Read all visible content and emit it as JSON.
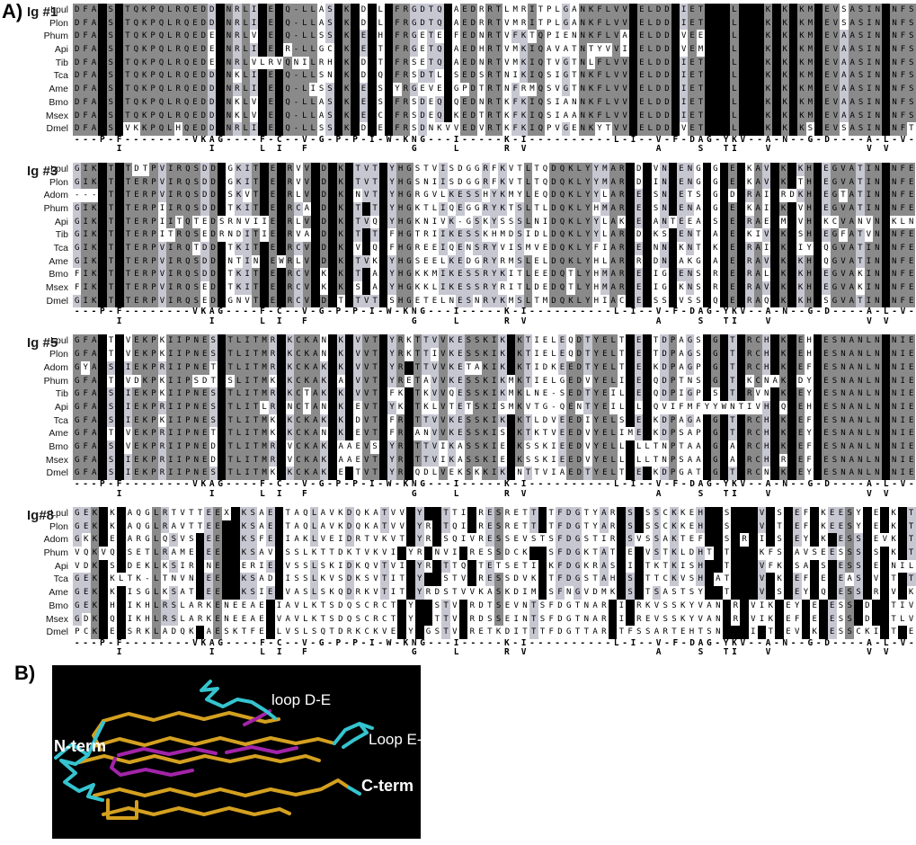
{
  "figure": {
    "panel_a_label": "A)",
    "panel_b_label": "B)"
  },
  "alignment": {
    "colors": {
      "identical_box": "#000000",
      "conserved_bg": "#8a8a8a",
      "similar_bg": "#c7c7d2",
      "mismatch_bg": "#ffffff",
      "text": "#000000",
      "black_box_char": "#"
    },
    "consensus": {
      "line1": "---P-F--------VKAG----F-C--V-G-P-P-I-W-KNG---I-----K-I----------L-I--V-F-DAG-YKV--A-N--G-D----A-L-V-",
      "line2": "     I          I     L I  F            G    L     R V               A    S  TI   V           V V"
    },
    "blocks": [
      {
        "title": "Ig #1",
        "rows": [
          {
            "name": "Lpul",
            "seq": "DFA#S#TQKPQLRQEDD#NRLI#E#Q-LLAS#K#D#L#FRGDTQ#AEDRRTLMRITPLGANKFLVV#ELDD#IET###L###K#K#KM#EVSASIN#NFS"
          },
          {
            "name": "Plon",
            "seq": "DFA#S#TQKPQLRQEDD#NRLI#E#Q-LLAS#K#D#L#FRGDTQ#AEDRRTVMRITPLGANKFLVV#ELDD#IET###L###K#K#KM#EVSASIN#NFS"
          },
          {
            "name": "Phum",
            "seq": "DFA#S#TQKPQLRQEDE#NRLV#E#Q-LLSS#K#E#H#FRGETE#FEDNRTVFKTQPIENNKFLVA#ELDD#VEE###L###K#K#KM#EVAASIN#NFS"
          },
          {
            "name": "Api",
            "seq": "DFA#S#TQKPQLRQEDE#NRLI#E#R-LLGC#K#E#T#FRGETQ#AEDHRTVMKIQAVATNTYVVI#ELDD#VEM###L###K#K#KM#EVAASIN#NFS"
          },
          {
            "name": "Tib",
            "seq": "DFA#S#TQKPQLRQEDE#NRLVLRVQNILRH#K#D#T#FRSETQ#AEDNRTVMKIQTVGTNLFLVV#ELDD#IET###L###K#K#KM#EVAASIN#NFS"
          },
          {
            "name": "Tca",
            "seq": "DFA#S#TQKPQLRQEDD#NKLI#E#Q-LLSN#K#D#Q#FRSDTL#SEDSRTNIKIQSIGTNKFLVV#ELDD#IET###L###K#K#KM#EVAASIN#NFS"
          },
          {
            "name": "Ame",
            "seq": "DFA#S#TQKPQLRQEDD#NRLI#E#Q-LISS#K#E#S#YRGEVE#GPDTRTNFRMQSVGTNKFLVV#ELDD#IET###L###K#K#KM#EVAASIN#NFS"
          },
          {
            "name": "Bmo",
            "seq": "DFA#S#TQKPQLRQEDD#NKLV#E#Q-LLAS#K#E#S#FRSDEQ#QEDNRTKFKIQSIANNKFLVV#ELDD#IET###L###K#K#KM#EVAASIN#NFS"
          },
          {
            "name": "Msex",
            "seq": "DFA#S#TQKPQLRQEDD#NKLV#E#Q-LLAS#K#E#C#FRSDEQ#KEDTRTKFKIQSIAANKFLVV#ELDD#IET###L###K#K#KM#EVAASIN#NFS"
          },
          {
            "name": "Dmel",
            "seq": "DFA#S#VKKPQLHQEDD#NRLI#E#Q-LLSS#K#D#E#FRSDNKVVEDVRTKFKIQPVGENKYTVV#ELDD#VET###L###K#K#KS#EVSASIN#NFT"
          }
        ]
      },
      {
        "title": "Ig #3",
        "rows": [
          {
            "name": "Lpul",
            "seq": "GIK#T#TDTPVIRQSDD#GKIT#E#RVV#D#K#TVT#YHGSTVISDGGRFKVTLTQDQKLYYMAR#D#VN#ENG#G#E#KAV#K#KH#EGVATIN#NFE"
          },
          {
            "name": "Plon",
            "seq": "GIK#T#TERPVIRQSDD#GKIT#E#RVV#D#K#TVT#YHGSNIISDGGRFKVTLTQDQKLYYMAR#D#IN#ENG#G#E#KAV#K#TH#EGVATIN#NFE"
          },
          {
            "name": "Adom",
            "seq": "---#T#TERPVIRQSDD#SKVT#E#RLV#D#K#NVT#YHGRGVLKESSHYKMYLEQDQKLYYLAR#E#SN#ETS#G#D#RAI#RDKH#EGTATIN#NFE"
          },
          {
            "name": "Phum",
            "seq": "GIK#T#TERPIIRQSDD#TKIT#E#RCA#D#K#T#T#YHGKTLIQEGGRYKTSLTLDQKLYHMAR#E#SN#ENA#G#E#KAI#K#VH#EGVATIN#NFE"
          },
          {
            "name": "Api",
            "seq": "GIK#T#TERPIITQTEDSRNVIIE#RLV#D#K#TVQ#YHGKNIVK-GSKYSSSLNIDQKLYYLAK#E#ANTEEA#S#E#RAE#M#VH#KCVANVN#KLN"
          },
          {
            "name": "Tib",
            "seq": "GIK#T#TERPITRQSEDRNDITIE#RVA#D#K#T#T#FHGTRIIKESSKHMDSIDLDQKLYYLAR#D#KS#ENT#A#E#KIV#K#SH#EGFATVN#NFE"
          },
          {
            "name": "Tca",
            "seq": "GIK#T#TERPVIRQTDD#TKIT#E#RCV#D#K#V#Q#FHGREEIQENSRYVISMVEDQKLYFIAR#E#NN#KNT#K#E#RAI#K#IY#QGVATIN#NFE"
          },
          {
            "name": "Ame",
            "seq": "GIK#T#TERPVIRQSDD#NTIN#EWRLV#D#K#TVK#YHGSEELKEDGRYRMSLELDQKLYHLAR#R#DN#AKG#A#E#RAV#K#KH#QGVATIN#NFE"
          },
          {
            "name": "Bmo",
            "seq": "FIK#T#TERPVIRQSDD#TKIT#E#RCV#K#K#T#A#YHGKKMIKESSRYKITLEEDQTLYHMAR#E#IG#ENS#R#E#RAL#K#KH#EGVAKIN#NFE"
          },
          {
            "name": "Msex",
            "seq": "FIK#T#TERPVIRQSED#TKIT#E#RCV#K#K#S#A#YHGKKLIKESSRYRITLDEDQTLYHMAR#E#IG#KNS#R#E#RAV#K#KH#EGVAKIN#NFE"
          },
          {
            "name": "Dmel",
            "seq": "GIK#T#TERPVIRQSED#GNVT#E#RCV#D#T#TVT#SHGETELNESNRYKMSLTMDQKLYHIAC#E#SS#VSS#Q#E#RAQ#K#KH#SGVATIN#NFE"
          }
        ]
      },
      {
        "title": "Ig #5",
        "rows": [
          {
            "name": "Lpul",
            "seq": "GFA#T#VEKPKIIPNES#TLITMR#KCKAN#K#VVT#YRKTTVVKESSKIK#KTIELEQDTYELT#E#TDPAGS#G#T#RCH#K#EH#ESNANLN#NIE"
          },
          {
            "name": "Plon",
            "seq": "GFA#T#VEKPKIIPNES#TLITMR#KCKAN#K#VVT#YRKTTIVKESSKIK#KTIELEQDTYELT#E#TDPAGS#G#T#RCH#K#EH#ESNANLN#NIE"
          },
          {
            "name": "Adom",
            "seq": "GYA#S#IEKPRIIPNET#TLITMR#KCKAK#K#VVT#YR#TTVVKETAKIK#KTIDKEEDTYELT#E#KDPAGP#G#T#RCH#K#EF#ESNANLN#NIE"
          },
          {
            "name": "Phum",
            "seq": "GFA#T#VDKPKIIPSDT#SLITMK#KCKAK#A#VVT#YRETAVVKESSKIKMKTIELGEDVYELI#E#QDPTNS#G#T#KCNAK#DY#ESNANLN#NIE"
          },
          {
            "name": "Tib",
            "seq": "GFA#S#IEKPKIIPNES#TLITMR#KCTAK#K#VVT#FK#TKVVQESSKIKMKLNE-SEDTYEIL#E#QDPIGP#S#T#RVN#K#EY#ESNANLN#NIE"
          },
          {
            "name": "Api",
            "seq": "GFA#S#IEKPRIIPNES#TLITLR#NCTAN#K#EVT#YK#TKLVTETSKISMKVTG-QENTYEIL#L#QVIFMFYYWNTIVH#Q#EH#ESNANLN#NIE"
          },
          {
            "name": "Tca",
            "seq": "GFA#S#IEKPKIIPNES#TLITMK#KCKAK#K#DVT#FR#TTVVKESSKIK#KTLDVEEDIYELS#E#KDPAGA#G#T#RCH#K#EF#ESNANLN#NIE"
          },
          {
            "name": "Ame",
            "seq": "GFA#T#VEKPRIIPNET#TLITMK#KCKAN#K#EVT#FR#ANVVKESSKIS#KTKTVEEDVYELIME#KDPSAP#G#T#RCH#K#EY#ESNANLN#NIE"
          },
          {
            "name": "Bmo",
            "seq": "GFA#S#VEKPRIIPNED#TLITMR#VCKAK#AAEVS#YR#TTVIKASSKIE#KSSKIEEDVYELL#LLTNPTAA#G#A#RCH#K#EF#ESNANLN#NIE"
          },
          {
            "name": "Msex",
            "seq": "GFA#S#IEKPRIIPNED#TLITMR#VCKAK#AAEVT#YR#TTVIKASSKIE#KSSKIEEDVYELL#LLTNPSAA#G#A#RCH#R#EF#ESNANLN#NIE"
          },
          {
            "name": "Dmel",
            "seq": "GFA#S#IEKPRIIPNES#TLITMK#KCKAK#E#TVT#YR#QDLVEKSKKIK#NTTVIAEDTYELT#E#KDPGAT#G#T#RCN#K#EY#ESNANLN#NIE"
          }
        ]
      },
      {
        "title": "Ig#8",
        "rows": [
          {
            "name": "Lpul",
            "seq": "GEK#K#AQGLRTVTTEEX#KSAE#TAQLAVKDQKATVV#Y##TTI#RESRETT#TFDGTYAR#S#SSCKKEH##S###V#S#EF#KEESY#E#K#T"
          },
          {
            "name": "Plon",
            "seq": "GEK#K#AQGLRAVTTEE##KSAE#TAQLAVKDQKATVV#YR#TQI#RESRETT#TFDGTYAR#S#SSCKKEH##S###V#T#EF#KEESY#E#K#T"
          },
          {
            "name": "Adom",
            "seq": "GKK#E#ARGLQSVS#EE##KSFE#IAKLVEIDRTVKVT#YR#SQIVRESSEVSTSFDGSTIR#SVSSAKTEF##S#R#I#S#EY#K#ESS#EVK#T"
          },
          {
            "name": "Phum",
            "seq": "VQKVQ#SETLRAME#EE##KSAV#SSLKTTDKTVKVI#YR#NVI#RESSDCK##SFDGKTAT#E#VSTKLDHT#T###KFS#AVSEESSS#S#K#T"
          },
          {
            "name": "Api",
            "seq": "VDK#S#DEKLKSIR#NE##ERIE#VSSLSKIDKQVTVI#YR#TTQ#TETSETI#KFDGKRAS#I#TKTKISH##T###VFK#SA#S#ESS#E#NIL"
          },
          {
            "name": "Tca",
            "seq": "GEK#KLTK-LTNVN#EE##KSAD#ISSLKVSDKSVTIT#Y##STV#RESSDVK#TFDGSTAH#S#TTCKVSH#AT###V#K#EF#E#EAS#V#T#T"
          },
          {
            "name": "Ame",
            "seq": "GEK#K#ISGLKSAT#EE##KSIE#VASLSKQDRKVTIT#YRDSTVVKASKDIM#SFNGVDMK#S#TSASTSY##T###V#S#EY#Q#ESS#R#V#K"
          },
          {
            "name": "Bmo",
            "seq": "GEK#H#IKHLRSLARKENEEAE#IAVLKTSDQSCRCT#Y##STV#RDTSEVNTSFDGTNAR#I#RKVSSKYVAN#R#VIK#EY#E#ESS#D#TIV"
          },
          {
            "name": "Msex",
            "seq": "GDK#Q#IKHLRSLARKENEEAE#VAVLKTSDQSCRCT#Y##TTV#RDSSEINTSFDGTNAR#I#REVSSKYVAN#R#VIK#EF#E#ESS#D#TLV"
          },
          {
            "name": "Dmel",
            "seq": "PCK#E#SRKLADQK#AESKTFE#LVSLSQTDRKCKVE#Y#GSTV#RETKDITTTFDGTTAR#TFSSARTEHTSN###I#T#EV#K#ESSCKIT#E"
          }
        ]
      }
    ]
  },
  "structure": {
    "labels": {
      "loop_de": "loop D-E",
      "loop_ef": "Loop E-F",
      "n_term": "N-term",
      "c_term": "C-term"
    },
    "colors": {
      "background": "#000000",
      "strand": "#D4A020",
      "loop": "#35C4CF",
      "highlight": "#A224A8",
      "label_text": "#FFFFFF"
    }
  }
}
